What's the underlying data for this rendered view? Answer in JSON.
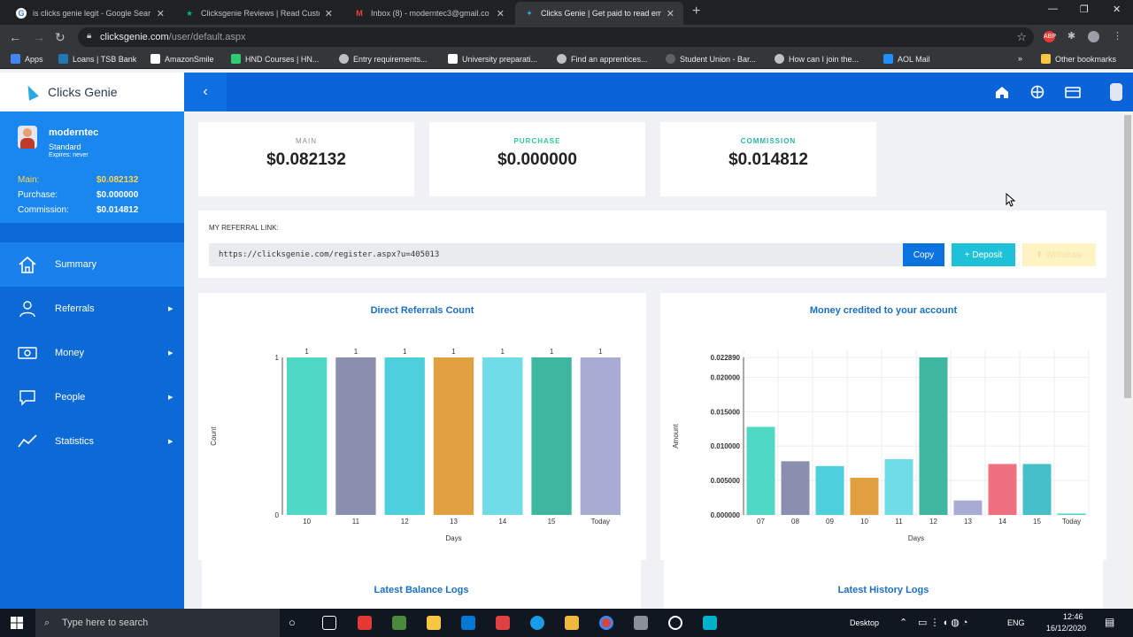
{
  "browser": {
    "tabs": [
      {
        "title": "is clicks genie legit - Google Sear",
        "icon": "google-icon",
        "color": "#4285f4",
        "active": false
      },
      {
        "title": "Clicksgenie Reviews | Read Custo",
        "icon": "trustpilot-icon",
        "color": "#00b67a",
        "active": false
      },
      {
        "title": "Inbox (8) - moderntec3@gmail.co",
        "icon": "gmail-icon",
        "color": "#ea4335",
        "active": false
      },
      {
        "title": "Clicks Genie | Get paid to read em",
        "icon": "clicksgenie-icon",
        "color": "#2aa9e0",
        "active": true
      }
    ],
    "url_host": "clicksgenie.com",
    "url_path": "/user/default.aspx",
    "bookmarks": [
      {
        "label": "Apps",
        "color": "#4285f4"
      },
      {
        "label": "Loans | TSB Bank",
        "color": "#1f77b4"
      },
      {
        "label": "AmazonSmile",
        "color": "#ffffff"
      },
      {
        "label": "HND Courses | HN...",
        "color": "#2ecc71"
      },
      {
        "label": "Entry requirements...",
        "color": "#bdc1c6"
      },
      {
        "label": "University preparati...",
        "color": "#ffffff"
      },
      {
        "label": "Find an apprentices...",
        "color": "#bdc1c6"
      },
      {
        "label": "Student Union - Bar...",
        "color": "#5f6368"
      },
      {
        "label": "How can I join the...",
        "color": "#bdc1c6"
      },
      {
        "label": "AOL Mail",
        "color": "#1e90ff"
      }
    ],
    "other_bookmarks": "Other bookmarks"
  },
  "app": {
    "brand": "Clicks Genie",
    "user": {
      "name": "moderntec",
      "tier": "Standard",
      "expires": "Expires: never"
    },
    "balances": [
      {
        "label": "Main:",
        "value": "$0.082132",
        "color": "#ffd54f"
      },
      {
        "label": "Purchase:",
        "value": "$0.000000",
        "color": "#ffffff"
      },
      {
        "label": "Commission:",
        "value": "$0.014812",
        "color": "#ffffff"
      }
    ],
    "menu": [
      {
        "label": "Summary",
        "icon": "home-icon",
        "active": true,
        "submenu": false
      },
      {
        "label": "Referrals",
        "icon": "referrals-icon",
        "active": false,
        "submenu": true
      },
      {
        "label": "Money",
        "icon": "money-icon",
        "active": false,
        "submenu": true
      },
      {
        "label": "People",
        "icon": "people-icon",
        "active": false,
        "submenu": true
      },
      {
        "label": "Statistics",
        "icon": "statistics-icon",
        "active": false,
        "submenu": true
      }
    ],
    "stats": [
      {
        "label": "MAIN",
        "value": "$0.082132",
        "color": "#8a8f98"
      },
      {
        "label": "PURCHASE",
        "value": "$0.000000",
        "color": "#2ecc9a"
      },
      {
        "label": "COMMISSION",
        "value": "$0.014812",
        "color": "#2bb5a6"
      }
    ],
    "referral": {
      "title": "MY REFERRAL LINK:",
      "link": "https://clicksgenie.com/register.aspx?u=405013",
      "copy": "Copy",
      "deposit": "+ Deposit",
      "withdraw": "⬆ Withdraw"
    },
    "logs": {
      "balance": "Latest Balance Logs",
      "history": "Latest History Logs"
    }
  },
  "chart_data": [
    {
      "type": "bar",
      "title": "Direct Referrals Count",
      "xlabel": "Days",
      "ylabel": "Count",
      "categories": [
        "10",
        "11",
        "12",
        "13",
        "14",
        "15",
        "Today"
      ],
      "values": [
        1,
        1,
        1,
        1,
        1,
        1,
        1
      ],
      "data_labels": [
        "1",
        "1",
        "1",
        "1",
        "1",
        "1",
        "1"
      ],
      "yticks": [
        "0",
        "1"
      ],
      "ylim": [
        0,
        1
      ],
      "colors": [
        "#4fd8c4",
        "#8a8fb0",
        "#4dd0dc",
        "#e0a040",
        "#6fdce8",
        "#3fb6a0",
        "#a8acd4"
      ],
      "grid": false
    },
    {
      "type": "bar",
      "title": "Money credited to your account",
      "xlabel": "Days",
      "ylabel": "Amount",
      "categories": [
        "07",
        "08",
        "09",
        "10",
        "11",
        "12",
        "13",
        "14",
        "15",
        "Today"
      ],
      "values": [
        0.0128,
        0.0078,
        0.0071,
        0.0054,
        0.0081,
        0.02289,
        0.0021,
        0.0074,
        0.0074,
        0.0002
      ],
      "yticks": [
        "0.000000",
        "0.005000",
        "0.010000",
        "0.015000",
        "0.020000",
        "0.022890"
      ],
      "ylim": [
        0,
        0.02289
      ],
      "colors": [
        "#4fd8c4",
        "#8a8fb0",
        "#4dd0dc",
        "#e0a040",
        "#6fdce8",
        "#3fb6a0",
        "#a8acd4",
        "#f07080",
        "#46c0c8",
        "#4fd8c4"
      ],
      "grid": true
    }
  ],
  "taskbar": {
    "search_placeholder": "Type here to search",
    "desktop": "Desktop",
    "lang": "ENG",
    "time": "12:46",
    "date": "16/12/2020"
  }
}
